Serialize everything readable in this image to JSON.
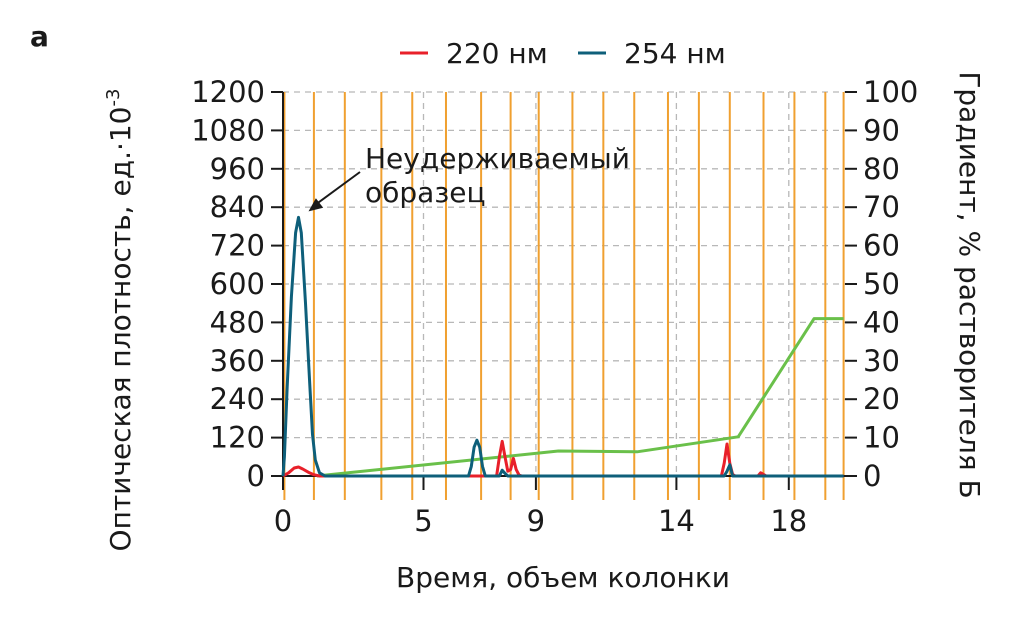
{
  "chart_data": {
    "type": "line",
    "panel_label": "a",
    "xlabel": "Время, объем колонки",
    "ylabel": "Оптическая плотность, ед.·10",
    "ylabel_exp": "-3",
    "y2label": "Градиент, % растворителя Б",
    "xlim": [
      0,
      20
    ],
    "ylim": [
      0,
      1200
    ],
    "y2lim": [
      0,
      100
    ],
    "x_ticks": [
      0,
      5,
      9,
      14,
      18
    ],
    "y_ticks": [
      0,
      120,
      240,
      360,
      480,
      600,
      720,
      840,
      960,
      1080,
      1200
    ],
    "y2_ticks": [
      0,
      10,
      20,
      30,
      40,
      50,
      60,
      70,
      80,
      90,
      100
    ],
    "grid": true,
    "legend_position": "top",
    "fraction_lines_x": [
      0.05,
      1.1,
      2.2,
      3.5,
      4.6,
      5.8,
      7.05,
      8.1,
      9.1,
      10.3,
      11.4,
      12.5,
      13.7,
      14.8,
      15.9,
      17.1,
      18.2,
      19.3,
      19.95
    ],
    "series": [
      {
        "name": "220 нм",
        "color": "#e8202a",
        "axis": "left",
        "x": [
          0,
          0.2,
          0.4,
          0.55,
          0.7,
          0.9,
          1.1,
          1.3,
          7.6,
          7.7,
          7.8,
          7.9,
          8.0,
          8.1,
          8.2,
          8.3,
          8.4,
          8.5,
          15.6,
          15.7,
          15.8,
          15.9,
          16.0,
          16.1,
          16.9,
          17.0,
          17.1,
          17.2,
          19.95
        ],
        "y": [
          0,
          10,
          25,
          28,
          22,
          12,
          4,
          0,
          0,
          60,
          108,
          60,
          15,
          20,
          55,
          20,
          3,
          0,
          0,
          40,
          100,
          40,
          5,
          0,
          0,
          10,
          5,
          0,
          0
        ]
      },
      {
        "name": "254 нм",
        "color": "#0e5f7a",
        "axis": "left",
        "x": [
          0,
          0.05,
          0.15,
          0.3,
          0.45,
          0.55,
          0.65,
          0.8,
          0.95,
          1.05,
          1.15,
          1.3,
          1.5,
          6.6,
          6.7,
          6.8,
          6.9,
          7.0,
          7.1,
          7.2,
          7.7,
          7.8,
          7.9,
          8.0,
          15.7,
          15.8,
          15.9,
          16.0,
          19.95
        ],
        "y": [
          0,
          60,
          280,
          560,
          760,
          808,
          760,
          540,
          290,
          130,
          50,
          10,
          0,
          0,
          30,
          90,
          112,
          90,
          30,
          0,
          0,
          18,
          8,
          0,
          0,
          15,
          35,
          0,
          0
        ]
      },
      {
        "name": "",
        "color": "#6ac04a",
        "axis": "right",
        "x": [
          1.2,
          9.8,
          12.6,
          16.2,
          18.9,
          19.95
        ],
        "y": [
          0,
          6.5,
          6.3,
          10.2,
          41,
          41
        ]
      }
    ],
    "annotation": {
      "lines": [
        "Неудерживаемый",
        "образец"
      ],
      "x": 0.55,
      "y": 808
    }
  }
}
